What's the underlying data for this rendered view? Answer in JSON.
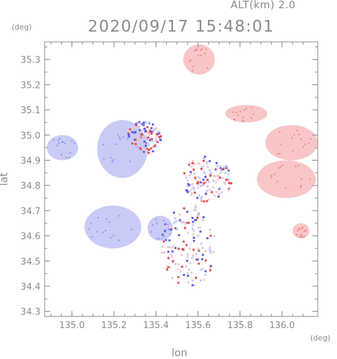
{
  "header": {
    "alt_label": "ALT(km) 2.0",
    "timestamp": "2020/09/17 15:48:01"
  },
  "chart_data": {
    "type": "heatmap",
    "title": "2020/09/17 15:48:01",
    "subtitle": "ALT(km) 2.0",
    "xlabel": "lon",
    "ylabel": "lat",
    "x_unit": "(deg)",
    "y_unit": "(deg)",
    "xlim": [
      134.87,
      136.17
    ],
    "ylim": [
      34.28,
      35.37
    ],
    "x_ticks": [
      135.0,
      135.2,
      135.4,
      135.6,
      135.8,
      136.0
    ],
    "x_tick_labels": [
      "135.0",
      "135.2",
      "135.4",
      "135.6",
      "135.8",
      "136.0"
    ],
    "y_ticks": [
      34.3,
      34.4,
      34.5,
      34.6,
      34.7,
      34.8,
      34.9,
      35.0,
      35.1,
      35.2,
      35.3
    ],
    "y_tick_labels": [
      "34.3",
      "34.4",
      "34.5",
      "34.6",
      "34.7",
      "34.8",
      "34.9",
      "35.0",
      "35.1",
      "35.2",
      "35.3"
    ],
    "grid": false,
    "colors": {
      "negative": "#c8cbf5",
      "positive": "#f8c6c6",
      "strong_negative": "#5a5ae6",
      "strong_positive": "#e84848",
      "axis": "#8a8a8a"
    },
    "regions": [
      {
        "sign": "negative",
        "lon": [
          134.88,
          135.03
        ],
        "lat": [
          34.9,
          35.0
        ]
      },
      {
        "sign": "negative",
        "lon": [
          135.12,
          135.36
        ],
        "lat": [
          34.83,
          35.06
        ]
      },
      {
        "sign": "negative",
        "lon": [
          135.06,
          135.33
        ],
        "lat": [
          34.55,
          34.72
        ]
      },
      {
        "sign": "negative",
        "lon": [
          135.36,
          135.48
        ],
        "lat": [
          34.58,
          34.68
        ]
      },
      {
        "sign": "mixed",
        "lon": [
          135.42,
          135.68
        ],
        "lat": [
          34.4,
          34.73
        ]
      },
      {
        "sign": "mixed",
        "lon": [
          135.26,
          135.42
        ],
        "lat": [
          34.93,
          35.06
        ]
      },
      {
        "sign": "mixed",
        "lon": [
          135.52,
          135.76
        ],
        "lat": [
          34.74,
          34.92
        ]
      },
      {
        "sign": "positive",
        "lon": [
          135.53,
          135.68
        ],
        "lat": [
          35.24,
          35.36
        ]
      },
      {
        "sign": "positive",
        "lon": [
          135.92,
          136.17
        ],
        "lat": [
          34.9,
          35.04
        ]
      },
      {
        "sign": "positive",
        "lon": [
          135.88,
          136.16
        ],
        "lat": [
          34.75,
          34.9
        ]
      },
      {
        "sign": "positive",
        "lon": [
          135.73,
          135.93
        ],
        "lat": [
          35.05,
          35.12
        ]
      },
      {
        "sign": "positive",
        "lon": [
          136.05,
          136.13
        ],
        "lat": [
          34.59,
          34.65
        ]
      }
    ]
  }
}
